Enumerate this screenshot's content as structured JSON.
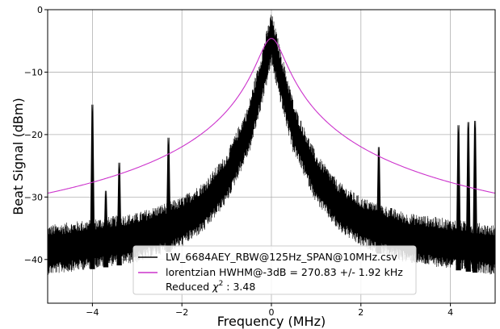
{
  "chart_data": {
    "type": "line",
    "title": "",
    "xlabel": "Frequency (MHz)",
    "ylabel": "Beat Signal (dBm)",
    "xlim": [
      -5,
      5
    ],
    "ylim": [
      -47,
      0
    ],
    "xticks": [
      -4,
      -2,
      0,
      2,
      4
    ],
    "yticks": [
      0,
      -10,
      -20,
      -30,
      -40
    ],
    "grid": true,
    "legend_position": "lower center",
    "series": [
      {
        "name": "LW_6684AEY_RBW@125Hz_SPAN@10MHz.csv",
        "color": "#000000",
        "style": "noisy measured spectrum",
        "envelope_x": [
          -5,
          -4,
          -3,
          -2,
          -1.5,
          -1,
          -0.5,
          -0.25,
          0,
          0.25,
          0.5,
          1,
          1.5,
          2,
          3,
          4,
          5
        ],
        "envelope_y": [
          -38.5,
          -37.5,
          -36.5,
          -34,
          -31.5,
          -27,
          -19,
          -12,
          -4.6,
          -12,
          -19,
          -27,
          -31.5,
          -34,
          -36.5,
          -37.5,
          -38.5
        ],
        "noise_span_db": [
          -4,
          4
        ],
        "spurs": [
          {
            "x": -4.0,
            "peak": -18.2
          },
          {
            "x": -3.7,
            "peak": -32.0
          },
          {
            "x": -3.4,
            "peak": -27.5
          },
          {
            "x": -2.3,
            "peak": -23.5
          },
          {
            "x": 2.4,
            "peak": -25.0
          },
          {
            "x": 4.18,
            "peak": -21.5
          },
          {
            "x": 4.4,
            "peak": -21.0
          },
          {
            "x": 4.55,
            "peak": -20.8
          }
        ]
      },
      {
        "name": "lorentzian HWHM@-3dB = 270.83 +/- 1.92 kHz",
        "color": "#cc33cc",
        "style": "lorentzian fit",
        "model": "lorentzian",
        "peak_dbm": -4.6,
        "hwhm_mhz": 0.27083,
        "floor_dbm": -38.6
      }
    ],
    "legend_entries": [
      "LW_6684AEY_RBW@125Hz_SPAN@10MHz.csv",
      "lorentzian HWHM@-3dB = 270.83 +/- 1.92 kHz"
    ],
    "annotation": {
      "prefix": "Reduced ",
      "symbol": "χ",
      "superscript": "2",
      "suffix": " : 3.48"
    }
  }
}
